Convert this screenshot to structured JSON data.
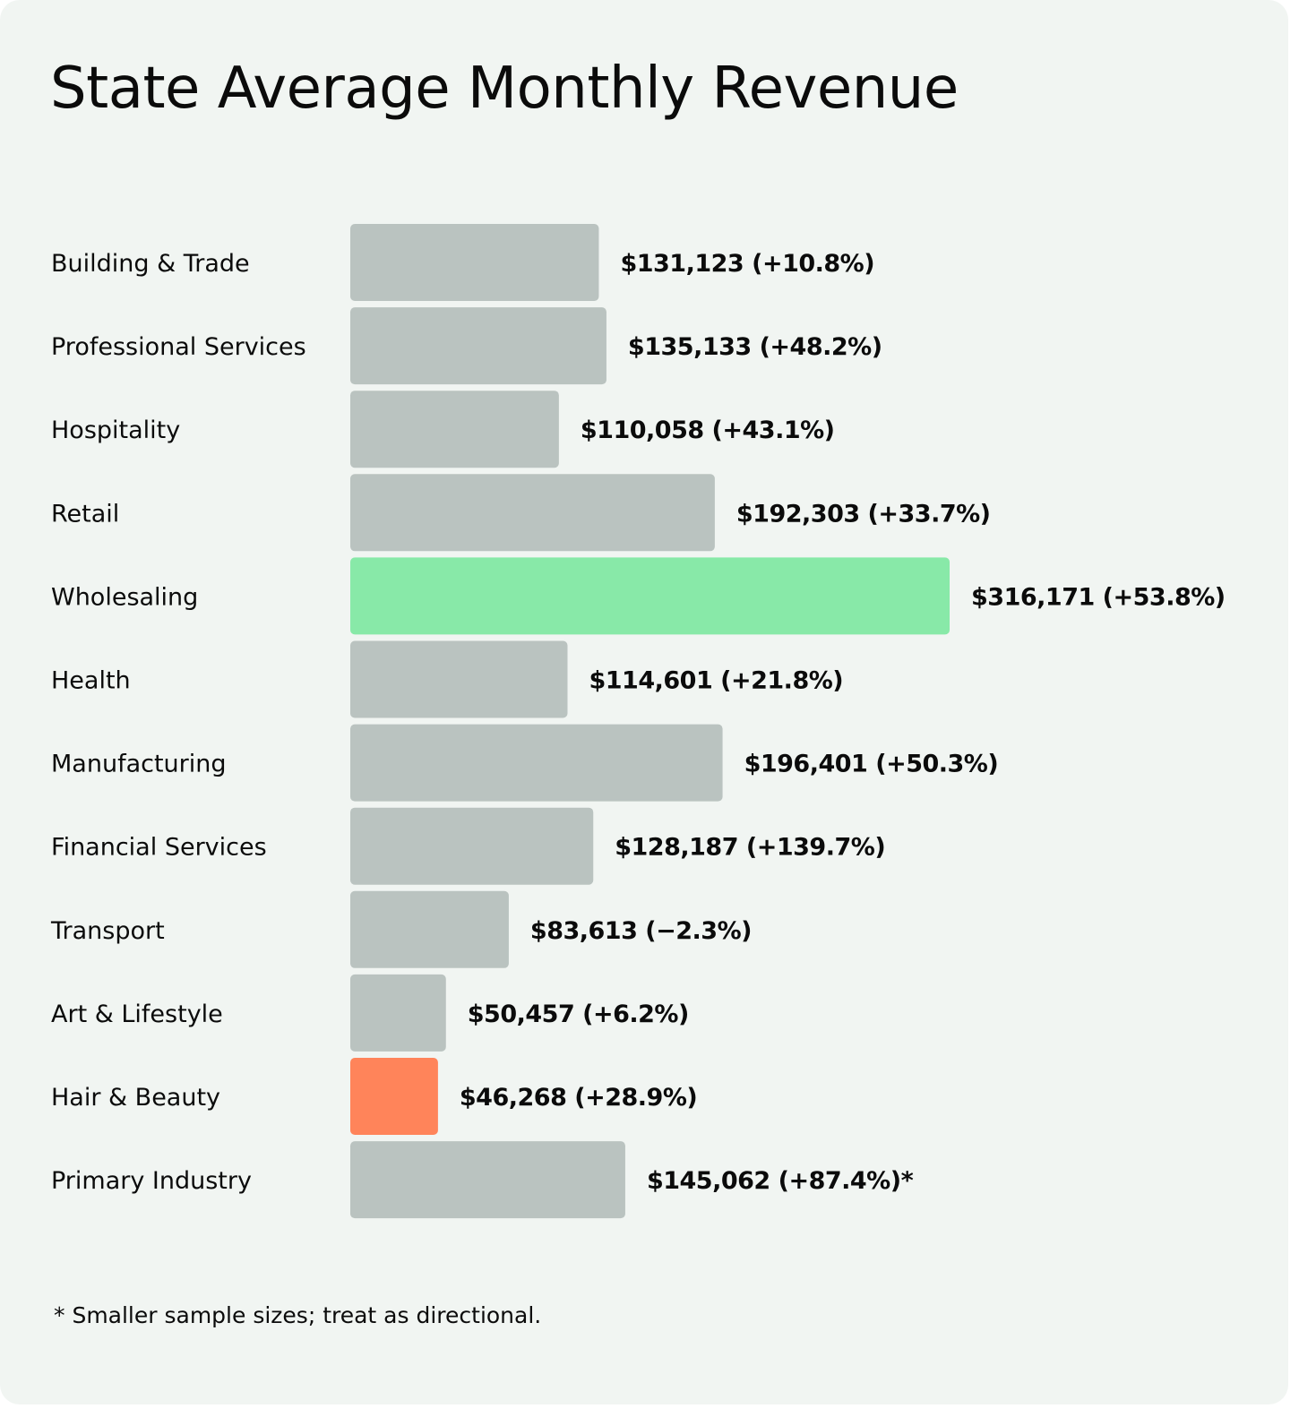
{
  "chart_data": {
    "type": "bar",
    "orientation": "horizontal",
    "title": "State Average Monthly Revenue",
    "categories": [
      "Building & Trade",
      "Professional Services",
      "Hospitality",
      "Retail",
      "Wholesaling",
      "Health",
      "Manufacturing",
      "Financial Services",
      "Transport",
      "Art & Lifestyle",
      "Hair & Beauty",
      "Primary Industry"
    ],
    "values": [
      131123,
      135133,
      110058,
      192303,
      316171,
      114601,
      196401,
      128187,
      83613,
      50457,
      46268,
      145062
    ],
    "changes": [
      "+10.8%",
      "+48.2%",
      "+43.1%",
      "+33.7%",
      "+53.8%",
      "+21.8%",
      "+50.3%",
      "+139.7%",
      "−2.3%",
      "+6.2%",
      "+28.9%",
      "+87.4%"
    ],
    "data_labels": [
      "$131,123 (+10.8%)",
      "$135,133 (+48.2%)",
      "$110,058 (+43.1%)",
      "$192,303 (+33.7%)",
      "$316,171 (+53.8%)",
      "$114,601 (+21.8%)",
      "$196,401 (+50.3%)",
      "$128,187 (+139.7%)",
      "$83,613 (−2.3%)",
      "$50,457 (+6.2%)",
      "$46,268 (+28.9%)",
      "$145,062 (+87.4%)*"
    ],
    "xlim": [
      0,
      316171
    ],
    "grid": false,
    "axes_visible": false,
    "colors": {
      "default": "#bac3c0",
      "highest": "#88e9a8",
      "lowest": "#ff845a",
      "background": "#f1f5f2"
    },
    "highlight": {
      "Wholesaling": "highest",
      "Hair & Beauty": "lowest"
    },
    "footnote": "* Smaller sample sizes; treat as directional."
  }
}
